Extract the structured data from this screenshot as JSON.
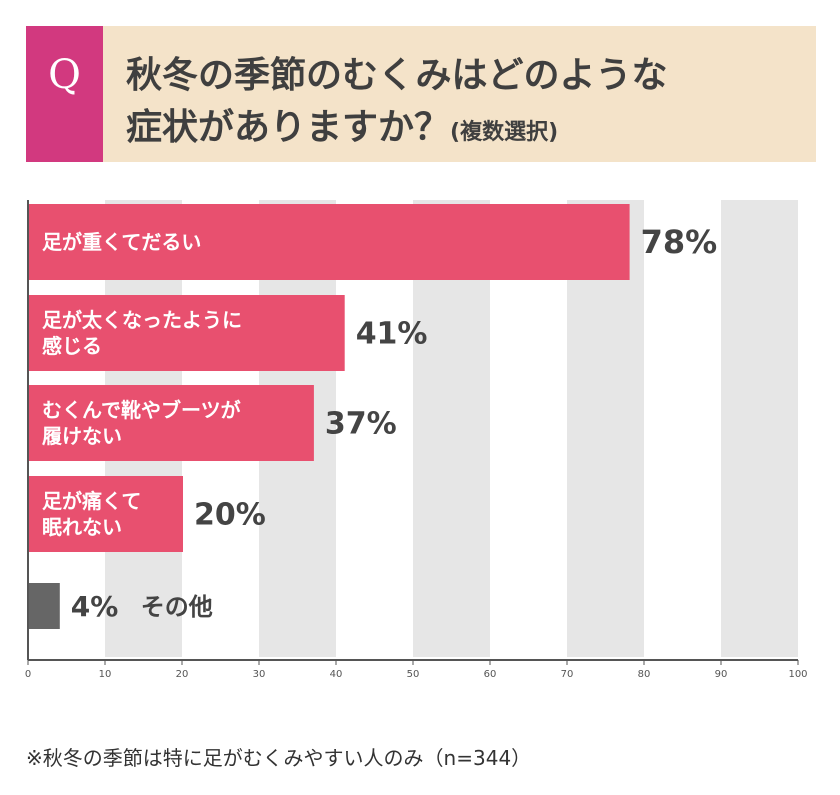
{
  "question": {
    "badge": "Q",
    "title_line1": "秋冬の季節のむくみはどのような",
    "title_line2": "症状がありますか？",
    "title_note": "(複数選択)"
  },
  "chart_data": {
    "type": "bar",
    "orientation": "horizontal",
    "categories": [
      [
        "足が重くてだるい"
      ],
      [
        "足が太くなったように",
        "感じる"
      ],
      [
        "むくんで靴やブーツが",
        "履けない"
      ],
      [
        "足が痛くて",
        "眠れない"
      ],
      [
        "その他"
      ]
    ],
    "values": [
      78,
      41,
      37,
      20,
      4
    ],
    "value_labels": [
      "78%",
      "41%",
      "37%",
      "20%",
      "4%"
    ],
    "xlim": [
      0,
      100
    ],
    "xticks": [
      0,
      10,
      20,
      30,
      40,
      50,
      60,
      70,
      80,
      90,
      100
    ],
    "grid": "alternating vertical bands",
    "colors": {
      "bar": "#e8506f",
      "other_bar": "#666666",
      "band": "#e6e6e6",
      "axis": "#555555",
      "bar_text": "#ffffff",
      "value_text": "#444444"
    }
  },
  "footnote": "※秋冬の季節は特に足がむくみやすい人のみ（n=344）"
}
